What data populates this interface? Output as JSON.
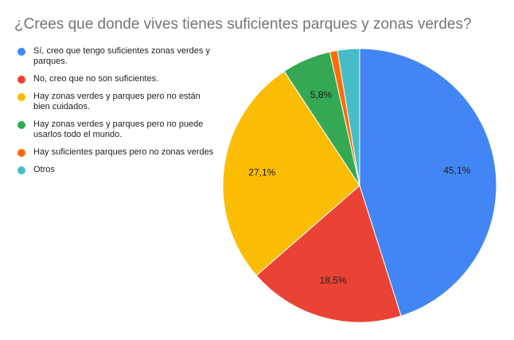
{
  "chart_data": {
    "type": "pie",
    "title": "¿Crees que donde vives tienes suficientes parques y zonas verdes?",
    "legend_position": "left",
    "slices": [
      {
        "label": "Sí, creo que tengo suficientes zonas verdes y parques.",
        "value": 45.1,
        "display": "45,1%",
        "color": "#4285f4"
      },
      {
        "label": "No, creo que no son suficientes.",
        "value": 18.5,
        "display": "18,5%",
        "color": "#ea4335"
      },
      {
        "label": "Hay zonas verdes y parques pero no están bien cuidados.",
        "value": 27.1,
        "display": "27,1%",
        "color": "#fbbc04"
      },
      {
        "label": "Hay zonas verdes y parques pero no puede usarlos todo el mundo.",
        "value": 5.8,
        "display": "5,8%",
        "color": "#34a853"
      },
      {
        "label": "Hay suficientes parques pero no zonas verdes",
        "value": 0.9,
        "display": "",
        "color": "#ff6d01"
      },
      {
        "label": "Otros",
        "value": 2.6,
        "display": "",
        "color": "#46bdc6"
      }
    ]
  }
}
